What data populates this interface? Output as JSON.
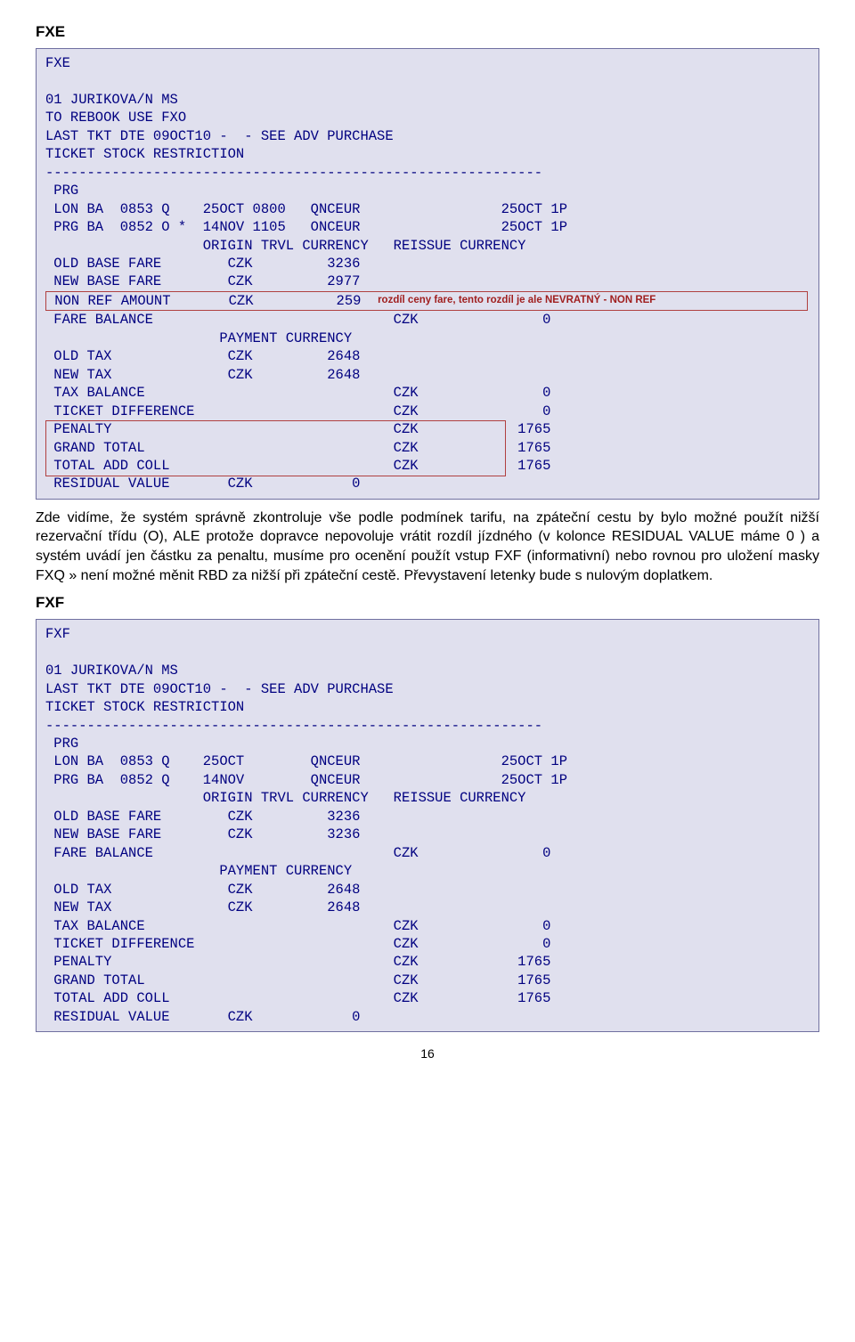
{
  "colors": {
    "terminal_bg": "#e0e0ee",
    "terminal_border": "#7070a0",
    "terminal_text": "#000080",
    "annotation_border": "#b04040",
    "annotation_text": "#a02020",
    "page_bg": "#ffffff",
    "body_text": "#000000"
  },
  "fxe": {
    "heading": "FXE",
    "lines": [
      "FXE",
      "",
      "01 JURIKOVA/N MS",
      "TO REBOOK USE FXO",
      "LAST TKT DTE 09OCT10 -  - SEE ADV PURCHASE",
      "TICKET STOCK RESTRICTION",
      "------------------------------------------------------------",
      " PRG",
      " LON BA  0853 Q    25OCT 0800   QNCEUR                 25OCT 1P",
      " PRG BA  0852 O *  14NOV 1105   ONCEUR                 25OCT 1P",
      "                   ORIGIN TRVL CURRENCY   REISSUE CURRENCY",
      " OLD BASE FARE        CZK         3236",
      " NEW BASE FARE        CZK         2977"
    ],
    "annot_line_pre": " NON REF AMOUNT       CZK          259  ",
    "annot_text": "rozdíl ceny fare, tento rozdíl je ale NEVRATNÝ - NON REF",
    "lines2": [
      " FARE BALANCE                             CZK               0",
      "                     PAYMENT CURRENCY",
      " OLD TAX              CZK         2648",
      " NEW TAX              CZK         2648",
      " TAX BALANCE                              CZK               0",
      " TICKET DIFFERENCE                        CZK               0",
      " PENALTY                                  CZK            1765",
      " GRAND TOTAL                              CZK            1765",
      " TOTAL ADD COLL                           CZK            1765",
      " RESIDUAL VALUE       CZK            0"
    ],
    "penalty_box": {
      "top_line_index": 6,
      "height_lines": 3
    }
  },
  "paragraph": "Zde vidíme, že systém správně zkontroluje vše podle podmínek tarifu, na zpáteční cestu by bylo možné použít nižší rezervační třídu (O), ALE protože dopravce nepovoluje vrátit rozdíl jízdného (v kolonce RESIDUAL VALUE máme 0 ) a systém uvádí jen částku za penaltu, musíme pro ocenění použít vstup FXF (informativní) nebo rovnou pro uložení masky FXQ » není možné měnit RBD za nižší při zpáteční cestě. Převystavení letenky bude s nulovým doplatkem.",
  "fxf": {
    "heading": "FXF",
    "lines": [
      "FXF",
      "",
      "01 JURIKOVA/N MS",
      "LAST TKT DTE 09OCT10 -  - SEE ADV PURCHASE",
      "TICKET STOCK RESTRICTION",
      "------------------------------------------------------------",
      " PRG",
      " LON BA  0853 Q    25OCT        QNCEUR                 25OCT 1P",
      " PRG BA  0852 Q    14NOV        QNCEUR                 25OCT 1P",
      "                   ORIGIN TRVL CURRENCY   REISSUE CURRENCY",
      " OLD BASE FARE        CZK         3236",
      " NEW BASE FARE        CZK         3236",
      " FARE BALANCE                             CZK               0",
      "                     PAYMENT CURRENCY",
      " OLD TAX              CZK         2648",
      " NEW TAX              CZK         2648",
      " TAX BALANCE                              CZK               0",
      " TICKET DIFFERENCE                        CZK               0",
      " PENALTY                                  CZK            1765",
      " GRAND TOTAL                              CZK            1765",
      " TOTAL ADD COLL                           CZK            1765",
      " RESIDUAL VALUE       CZK            0"
    ]
  },
  "page_number": "16"
}
